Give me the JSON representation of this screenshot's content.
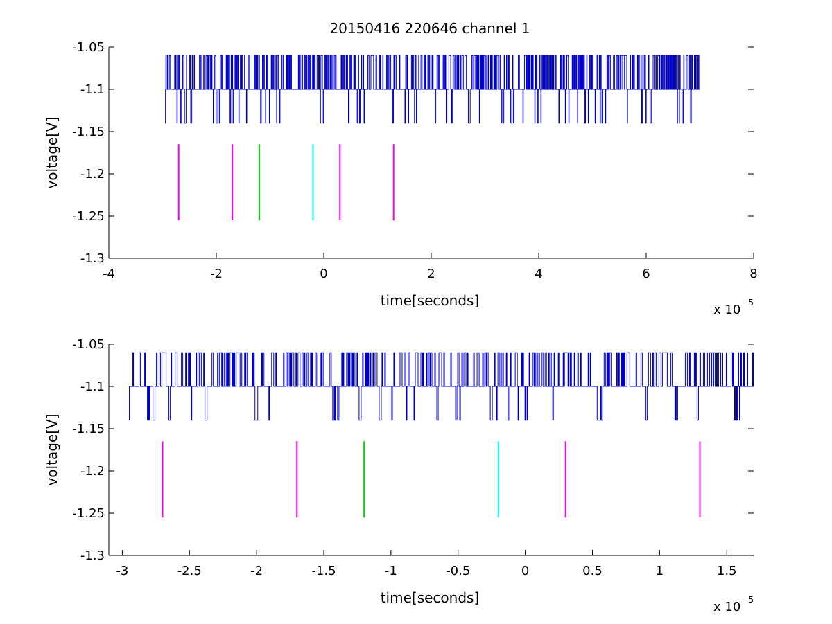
{
  "figure_title": "20150416 220646 channel 1",
  "colors": {
    "signal": "#0000cc",
    "magenta": "#ff00ff",
    "green": "#00dd00",
    "cyan": "#00ffff",
    "axes": "#000000",
    "background": "#ffffff"
  },
  "chart_data": [
    {
      "type": "line",
      "title": "20150416 220646 channel 1",
      "xlabel": "time[seconds]",
      "ylabel": "voltage[V]",
      "x_multiplier_label": "x 10",
      "x_multiplier_exponent": "-5",
      "xlim": [
        -4,
        8
      ],
      "ylim": [
        -1.3,
        -1.05
      ],
      "xticks": [
        -4,
        -2,
        0,
        2,
        4,
        6,
        8
      ],
      "xtick_labels": [
        "-4",
        "-2",
        "0",
        "2",
        "4",
        "6",
        "8"
      ],
      "yticks": [
        -1.3,
        -1.25,
        -1.2,
        -1.15,
        -1.1,
        -1.05
      ],
      "ytick_labels": [
        "-1.3",
        "-1.25",
        "-1.2",
        "-1.15",
        "-1.1",
        "-1.05"
      ],
      "grid": false,
      "signal": {
        "x_range": [
          -2.95,
          7.0
        ],
        "levels": [
          -1.06,
          -1.1,
          -1.14
        ],
        "baseline": -1.1,
        "description": "digitized voltage trace toggling between -1.06, -1.10 and -1.14 V"
      },
      "markers": [
        {
          "x": -2.7,
          "y_range": [
            -1.255,
            -1.165
          ],
          "color": "magenta"
        },
        {
          "x": -1.7,
          "y_range": [
            -1.255,
            -1.165
          ],
          "color": "magenta"
        },
        {
          "x": -1.2,
          "y_range": [
            -1.255,
            -1.165
          ],
          "color": "green"
        },
        {
          "x": -0.2,
          "y_range": [
            -1.255,
            -1.165
          ],
          "color": "cyan"
        },
        {
          "x": 0.3,
          "y_range": [
            -1.255,
            -1.165
          ],
          "color": "magenta"
        },
        {
          "x": 1.3,
          "y_range": [
            -1.255,
            -1.165
          ],
          "color": "magenta"
        }
      ]
    },
    {
      "type": "line",
      "title": "",
      "xlabel": "time[seconds]",
      "ylabel": "voltage[V]",
      "x_multiplier_label": "x 10",
      "x_multiplier_exponent": "-5",
      "xlim": [
        -3.1,
        1.7
      ],
      "ylim": [
        -1.3,
        -1.05
      ],
      "xticks": [
        -3,
        -2.5,
        -2,
        -1.5,
        -1,
        -0.5,
        0,
        0.5,
        1,
        1.5
      ],
      "xtick_labels": [
        "-3",
        "-2.5",
        "-2",
        "-1.5",
        "-1",
        "-0.5",
        "0",
        "0.5",
        "1",
        "1.5"
      ],
      "yticks": [
        -1.3,
        -1.25,
        -1.2,
        -1.15,
        -1.1,
        -1.05
      ],
      "ytick_labels": [
        "-1.3",
        "-1.25",
        "-1.2",
        "-1.15",
        "-1.1",
        "-1.05"
      ],
      "grid": false,
      "signal": {
        "x_range": [
          -2.95,
          1.7
        ],
        "levels": [
          -1.06,
          -1.1,
          -1.14
        ],
        "baseline": -1.1,
        "description": "zoomed view of the same voltage trace"
      },
      "markers": [
        {
          "x": -2.7,
          "y_range": [
            -1.255,
            -1.165
          ],
          "color": "magenta"
        },
        {
          "x": -1.7,
          "y_range": [
            -1.255,
            -1.165
          ],
          "color": "magenta"
        },
        {
          "x": -1.2,
          "y_range": [
            -1.255,
            -1.165
          ],
          "color": "green"
        },
        {
          "x": -0.2,
          "y_range": [
            -1.255,
            -1.165
          ],
          "color": "cyan"
        },
        {
          "x": 0.3,
          "y_range": [
            -1.255,
            -1.165
          ],
          "color": "magenta"
        },
        {
          "x": 1.3,
          "y_range": [
            -1.255,
            -1.165
          ],
          "color": "magenta"
        }
      ]
    }
  ]
}
